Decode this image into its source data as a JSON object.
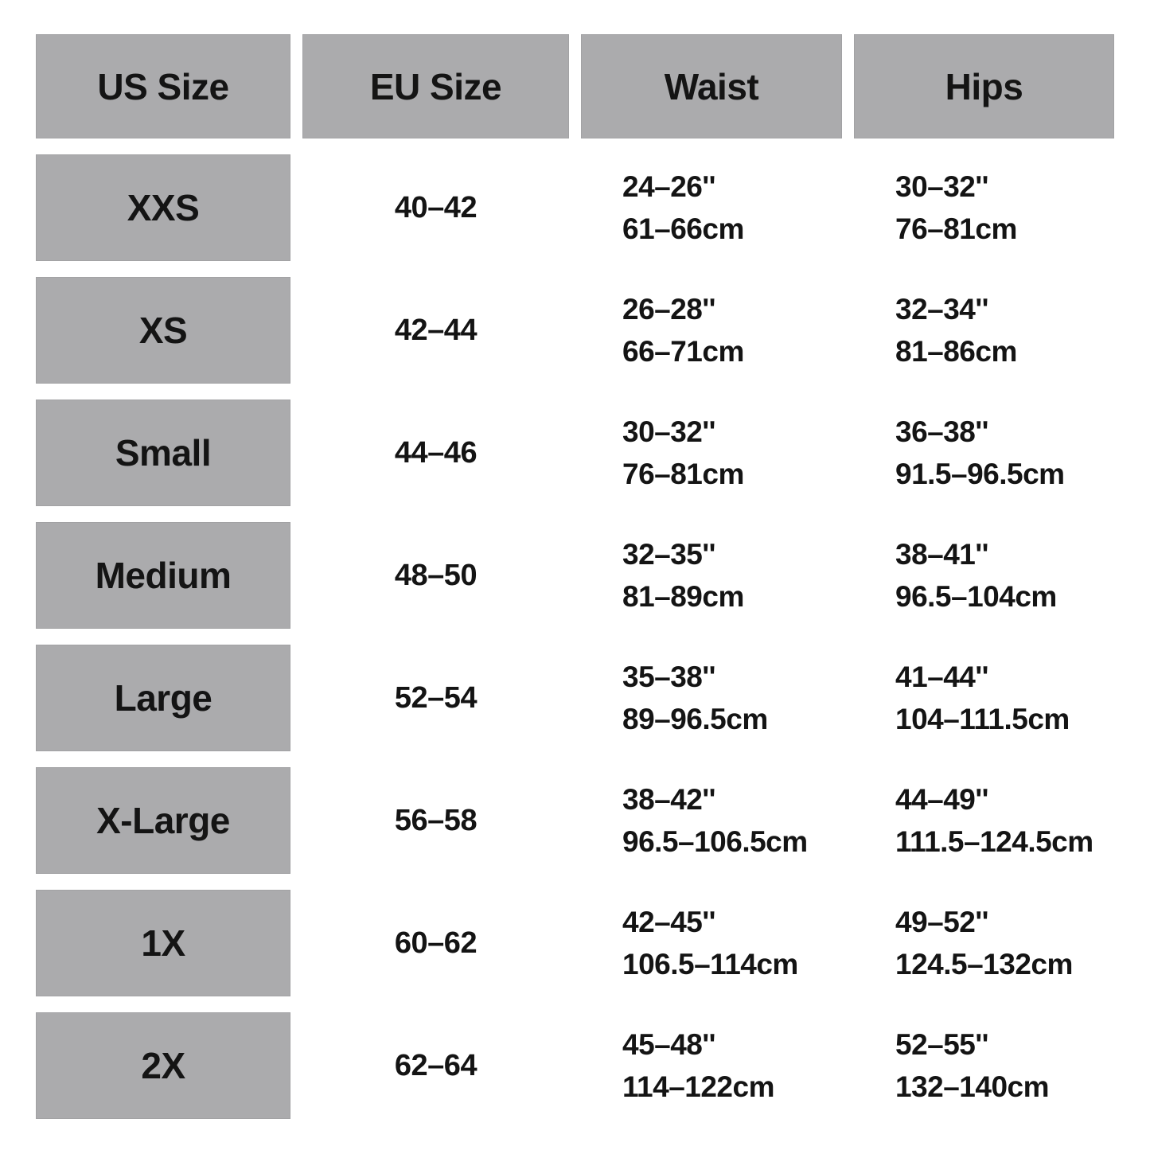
{
  "colors": {
    "cell_bg": "#ababad",
    "cell_border": "#a2a2a4",
    "text": "#141414",
    "page_bg": "#ffffff"
  },
  "chart_data": {
    "type": "table",
    "columns": [
      "US Size",
      "EU Size",
      "Waist",
      "Hips"
    ],
    "rows": [
      {
        "us_size": "XXS",
        "eu_size": "40–42",
        "waist_inches": "24–26''",
        "waist_cm": "61–66cm",
        "hips_inches": "30–32''",
        "hips_cm": "76–81cm"
      },
      {
        "us_size": "XS",
        "eu_size": "42–44",
        "waist_inches": "26–28''",
        "waist_cm": "66–71cm",
        "hips_inches": "32–34''",
        "hips_cm": "81–86cm"
      },
      {
        "us_size": "Small",
        "eu_size": "44–46",
        "waist_inches": "30–32''",
        "waist_cm": "76–81cm",
        "hips_inches": "36–38''",
        "hips_cm": "91.5–96.5cm"
      },
      {
        "us_size": "Medium",
        "eu_size": "48–50",
        "waist_inches": "32–35''",
        "waist_cm": "81–89cm",
        "hips_inches": "38–41''",
        "hips_cm": "96.5–104cm"
      },
      {
        "us_size": "Large",
        "eu_size": "52–54",
        "waist_inches": "35–38''",
        "waist_cm": "89–96.5cm",
        "hips_inches": "41–44''",
        "hips_cm": "104–111.5cm"
      },
      {
        "us_size": "X-Large",
        "eu_size": "56–58",
        "waist_inches": "38–42''",
        "waist_cm": "96.5–106.5cm",
        "hips_inches": "44–49''",
        "hips_cm": "111.5–124.5cm"
      },
      {
        "us_size": "1X",
        "eu_size": "60–62",
        "waist_inches": "42–45''",
        "waist_cm": "106.5–114cm",
        "hips_inches": "49–52''",
        "hips_cm": "124.5–132cm"
      },
      {
        "us_size": "2X",
        "eu_size": "62–64",
        "waist_inches": "45–48''",
        "waist_cm": "114–122cm",
        "hips_inches": "52–55''",
        "hips_cm": "132–140cm"
      }
    ]
  }
}
